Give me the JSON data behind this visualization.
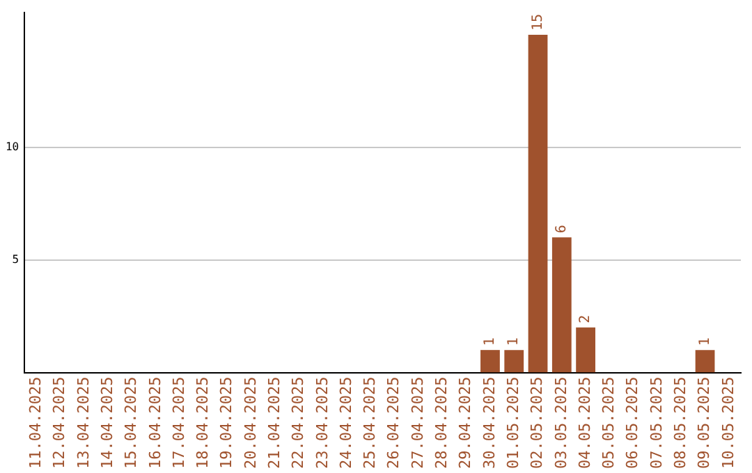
{
  "chart_data": {
    "type": "bar",
    "categories": [
      "11.04.2025",
      "12.04.2025",
      "13.04.2025",
      "14.04.2025",
      "15.04.2025",
      "16.04.2025",
      "17.04.2025",
      "18.04.2025",
      "19.04.2025",
      "20.04.2025",
      "21.04.2025",
      "22.04.2025",
      "23.04.2025",
      "24.04.2025",
      "25.04.2025",
      "26.04.2025",
      "27.04.2025",
      "28.04.2025",
      "29.04.2025",
      "30.04.2025",
      "01.05.2025",
      "02.05.2025",
      "03.05.2025",
      "04.05.2025",
      "05.05.2025",
      "06.05.2025",
      "07.05.2025",
      "08.05.2025",
      "09.05.2025",
      "10.05.2025"
    ],
    "values": [
      0,
      0,
      0,
      0,
      0,
      0,
      0,
      0,
      0,
      0,
      0,
      0,
      0,
      0,
      0,
      0,
      0,
      0,
      0,
      1,
      1,
      15,
      6,
      2,
      0,
      0,
      0,
      0,
      1,
      0
    ],
    "value_labels": [
      null,
      null,
      null,
      null,
      null,
      null,
      null,
      null,
      null,
      null,
      null,
      null,
      null,
      null,
      null,
      null,
      null,
      null,
      null,
      "1",
      "1",
      "15",
      "6",
      "2",
      null,
      null,
      null,
      null,
      "1",
      null
    ],
    "color": "#a0522d",
    "ylim": [
      0,
      16
    ],
    "yticks": [
      5,
      10
    ],
    "grid": "y",
    "legend": false
  }
}
